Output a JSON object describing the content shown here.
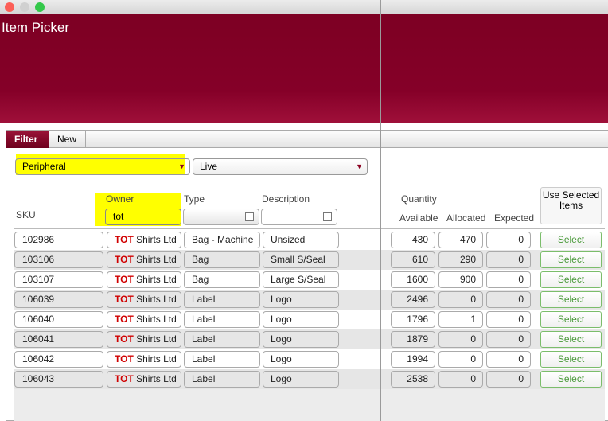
{
  "window": {
    "title": "Item Picker"
  },
  "tabs": [
    {
      "label": "Filter",
      "active": true
    },
    {
      "label": "New",
      "active": false
    }
  ],
  "filters": {
    "category": "Peripheral",
    "status": "Live"
  },
  "columns": {
    "sku": "SKU",
    "owner": "Owner",
    "type": "Type",
    "description": "Description",
    "quantity": "Quantity",
    "available": "Available",
    "allocated": "Allocated",
    "expected": "Expected"
  },
  "search": {
    "owner": "tot",
    "type": "",
    "description": ""
  },
  "use_selected_label": "Use Selected Items",
  "select_label": "Select",
  "colors": {
    "header": "#7d0023",
    "highlight": "#ffff00",
    "owner_prefix": "#d00000",
    "select": "#4a9a3a"
  },
  "rows": [
    {
      "sku": "102986",
      "owner_prefix": "TOT",
      "owner_rest": "Shirts Ltd",
      "type": "Bag - Machine",
      "description": "Unsized",
      "available": "430",
      "allocated": "470",
      "expected": "0"
    },
    {
      "sku": "103106",
      "owner_prefix": "TOT",
      "owner_rest": "Shirts Ltd",
      "type": "Bag",
      "description": "Small S/Seal",
      "available": "610",
      "allocated": "290",
      "expected": "0"
    },
    {
      "sku": "103107",
      "owner_prefix": "TOT",
      "owner_rest": "Shirts Ltd",
      "type": "Bag",
      "description": "Large S/Seal",
      "available": "1600",
      "allocated": "900",
      "expected": "0"
    },
    {
      "sku": "106039",
      "owner_prefix": "TOT",
      "owner_rest": "Shirts Ltd",
      "type": "Label",
      "description": "Logo",
      "available": "2496",
      "allocated": "0",
      "expected": "0"
    },
    {
      "sku": "106040",
      "owner_prefix": "TOT",
      "owner_rest": "Shirts Ltd",
      "type": "Label",
      "description": "Logo",
      "available": "1796",
      "allocated": "1",
      "expected": "0"
    },
    {
      "sku": "106041",
      "owner_prefix": "TOT",
      "owner_rest": "Shirts Ltd",
      "type": "Label",
      "description": "Logo",
      "available": "1879",
      "allocated": "0",
      "expected": "0"
    },
    {
      "sku": "106042",
      "owner_prefix": "TOT",
      "owner_rest": "Shirts Ltd",
      "type": "Label",
      "description": "Logo",
      "available": "1994",
      "allocated": "0",
      "expected": "0"
    },
    {
      "sku": "106043",
      "owner_prefix": "TOT",
      "owner_rest": "Shirts Ltd",
      "type": "Label",
      "description": "Logo",
      "available": "2538",
      "allocated": "0",
      "expected": "0"
    }
  ]
}
